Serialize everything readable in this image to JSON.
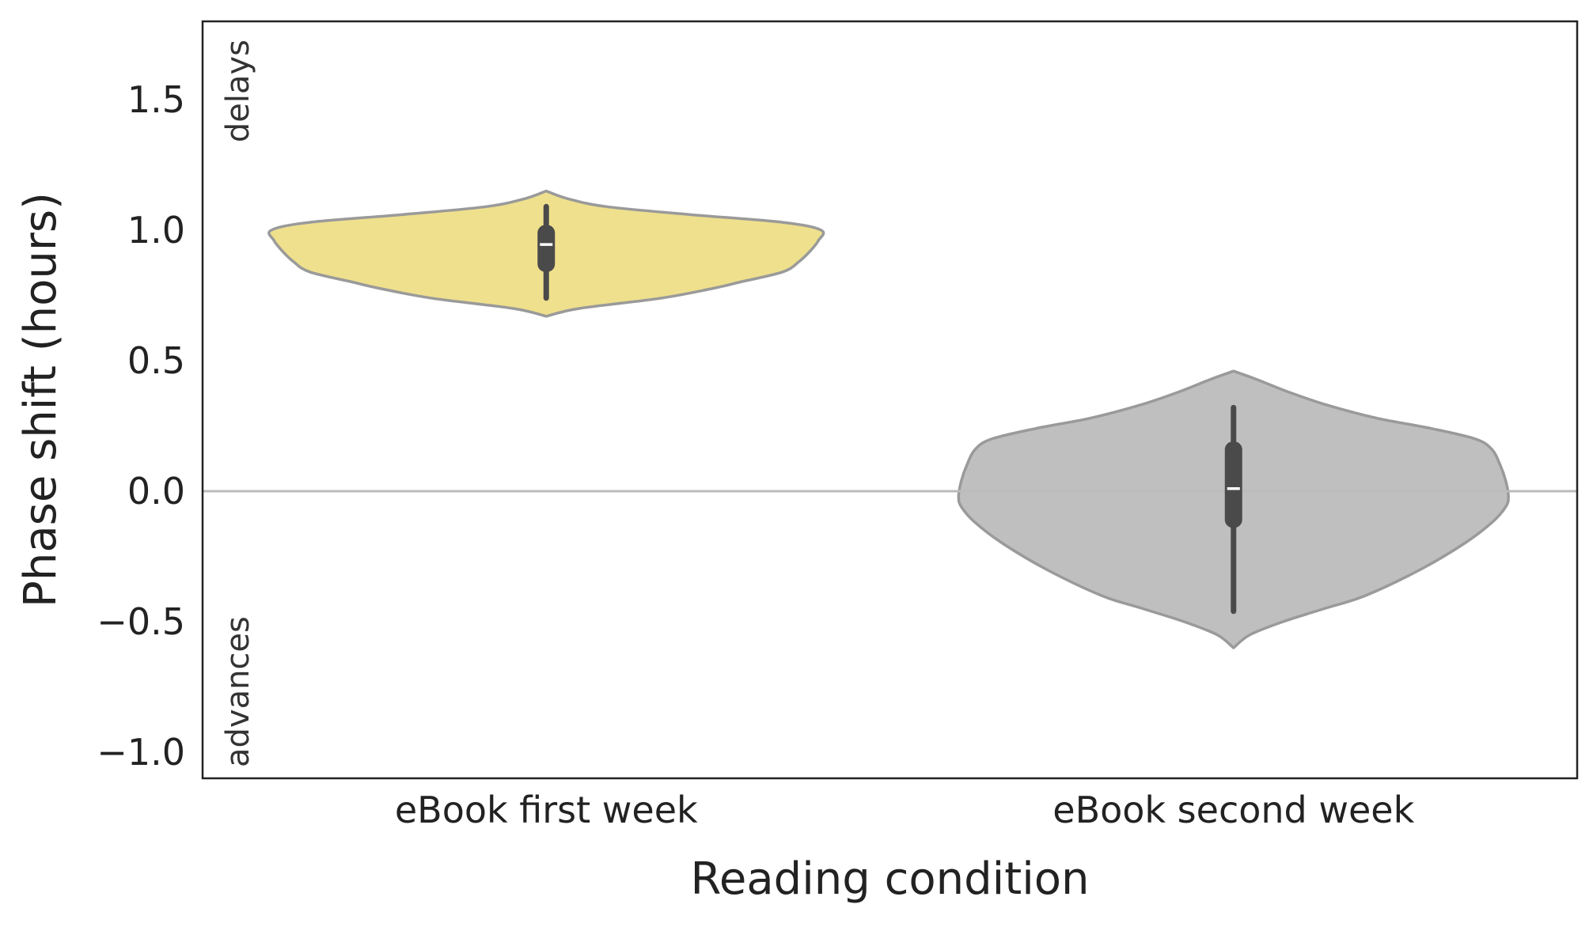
{
  "chart_data": {
    "type": "violin",
    "xlabel": "Reading condition",
    "ylabel": "Phase shift (hours)",
    "ylim": [
      -1.1,
      1.8
    ],
    "yticks": [
      -1.0,
      -0.5,
      0.0,
      0.5,
      1.0,
      1.5
    ],
    "ytick_labels": [
      "−1.0",
      "−0.5",
      "0.0",
      "0.5",
      "1.0",
      "1.5"
    ],
    "reference_line_y": 0.0,
    "annotations": {
      "upper": "delays",
      "lower": "advances"
    },
    "categories": [
      "eBook first week",
      "eBook second week"
    ],
    "series": [
      {
        "category": "eBook first week",
        "color": "#efe08d",
        "min": 0.74,
        "q1": 0.84,
        "median": 0.945,
        "q3": 1.02,
        "max": 1.09,
        "kde_extent": [
          0.67,
          1.15
        ],
        "density_profile": [
          [
            0.67,
            0.0
          ],
          [
            0.7,
            0.12
          ],
          [
            0.74,
            0.42
          ],
          [
            0.78,
            0.62
          ],
          [
            0.8,
            0.7
          ],
          [
            0.84,
            0.86
          ],
          [
            0.88,
            0.92
          ],
          [
            0.92,
            0.96
          ],
          [
            0.96,
            0.99
          ],
          [
            1.0,
            1.0
          ],
          [
            1.03,
            0.86
          ],
          [
            1.06,
            0.52
          ],
          [
            1.09,
            0.22
          ],
          [
            1.12,
            0.08
          ],
          [
            1.15,
            0.0
          ]
        ]
      },
      {
        "category": "eBook second week",
        "color": "#bfbfbf",
        "min": -0.46,
        "q1": -0.14,
        "median": 0.01,
        "q3": 0.19,
        "max": 0.32,
        "kde_extent": [
          -0.6,
          0.46
        ],
        "density_profile": [
          [
            -0.6,
            0.0
          ],
          [
            -0.55,
            0.06
          ],
          [
            -0.5,
            0.18
          ],
          [
            -0.45,
            0.33
          ],
          [
            -0.4,
            0.48
          ],
          [
            -0.3,
            0.68
          ],
          [
            -0.2,
            0.84
          ],
          [
            -0.12,
            0.94
          ],
          [
            -0.06,
            0.99
          ],
          [
            -0.02,
            1.0
          ],
          [
            0.04,
            0.99
          ],
          [
            0.1,
            0.97
          ],
          [
            0.16,
            0.94
          ],
          [
            0.2,
            0.88
          ],
          [
            0.24,
            0.72
          ],
          [
            0.28,
            0.52
          ],
          [
            0.33,
            0.34
          ],
          [
            0.38,
            0.2
          ],
          [
            0.43,
            0.08
          ],
          [
            0.46,
            0.0
          ]
        ]
      }
    ],
    "grid": false,
    "legend": "none"
  }
}
